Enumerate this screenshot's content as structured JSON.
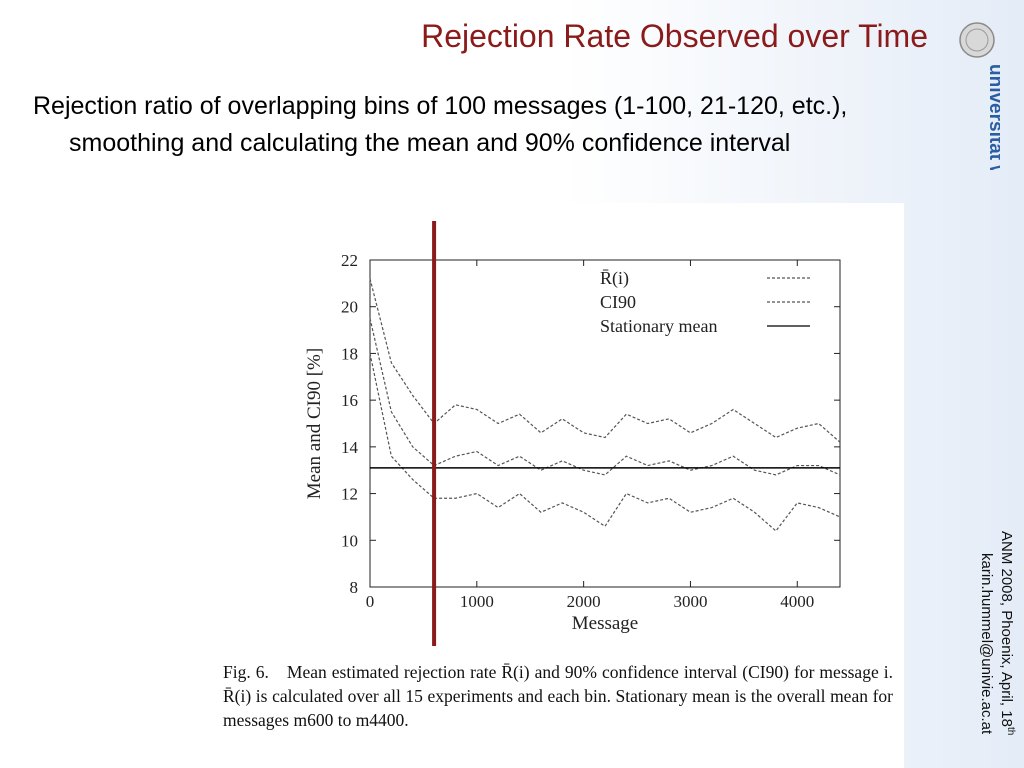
{
  "slide": {
    "title": "Rejection Rate Observed over Time",
    "bullet": "Rejection ratio of overlapping bins of 100 messages (1-100, 21-120, etc.),  smoothing and calculating the mean and 90% confidence interval",
    "logo_text": "universität wien",
    "footer_line1": "ANM 2008, Phoenix, April, 18",
    "footer_superscript": "th",
    "footer_line2": "karin.hummel@univie.ac.at",
    "accent_color": "#8b1a1a"
  },
  "caption": {
    "fig_label": "Fig. 6.",
    "text": "Mean estimated rejection rate R̄(i) and 90% confidence interval (CI90) for message i. R̄(i) is calculated over all 15 experiments and each bin. Stationary mean is the overall mean for messages m600 to m4400."
  },
  "chart_data": {
    "type": "line",
    "xlabel": "Message",
    "ylabel": "Mean and CI90 [%]",
    "xlim": [
      0,
      4400
    ],
    "ylim": [
      8,
      22
    ],
    "xticks": [
      0,
      1000,
      2000,
      3000,
      4000
    ],
    "yticks": [
      8,
      10,
      12,
      14,
      16,
      18,
      20,
      22
    ],
    "legend_position": "top-right",
    "marker": {
      "x": 600,
      "color": "#8b1a1a",
      "label": ""
    },
    "series": [
      {
        "name": "R̄(i)",
        "style": "dashed",
        "color": "#555555",
        "x": [
          0,
          200,
          400,
          600,
          800,
          1000,
          1200,
          1400,
          1600,
          1800,
          2000,
          2200,
          2400,
          2600,
          2800,
          3000,
          3200,
          3400,
          3600,
          3800,
          4000,
          4200,
          4400
        ],
        "y": [
          19.5,
          15.5,
          14.0,
          13.2,
          13.6,
          13.8,
          13.2,
          13.6,
          13.0,
          13.4,
          13.0,
          12.8,
          13.6,
          13.2,
          13.4,
          13.0,
          13.2,
          13.6,
          13.0,
          12.8,
          13.2,
          13.2,
          12.8
        ]
      },
      {
        "name": "CI90",
        "style": "dashed",
        "color": "#555555",
        "x": [
          0,
          200,
          400,
          600,
          800,
          1000,
          1200,
          1400,
          1600,
          1800,
          2000,
          2200,
          2400,
          2600,
          2800,
          3000,
          3200,
          3400,
          3600,
          3800,
          4000,
          4200,
          4400
        ],
        "y": [
          21.2,
          17.6,
          16.2,
          15.0,
          15.8,
          15.6,
          15.0,
          15.4,
          14.6,
          15.2,
          14.6,
          14.4,
          15.4,
          15.0,
          15.2,
          14.6,
          15.0,
          15.6,
          15.0,
          14.4,
          14.8,
          15.0,
          14.2
        ]
      },
      {
        "name": "",
        "style": "dashed",
        "color": "#555555",
        "x": [
          0,
          200,
          400,
          600,
          800,
          1000,
          1200,
          1400,
          1600,
          1800,
          2000,
          2200,
          2400,
          2600,
          2800,
          3000,
          3200,
          3400,
          3600,
          3800,
          4000,
          4200,
          4400
        ],
        "y": [
          18.0,
          13.6,
          12.6,
          11.8,
          11.8,
          12.0,
          11.4,
          12.0,
          11.2,
          11.6,
          11.2,
          10.6,
          12.0,
          11.6,
          11.8,
          11.2,
          11.4,
          11.8,
          11.2,
          10.4,
          11.6,
          11.4,
          11.0
        ]
      },
      {
        "name": "Stationary mean",
        "style": "solid",
        "color": "#000000",
        "x": [
          0,
          4400
        ],
        "y": [
          13.1,
          13.1
        ]
      }
    ]
  }
}
